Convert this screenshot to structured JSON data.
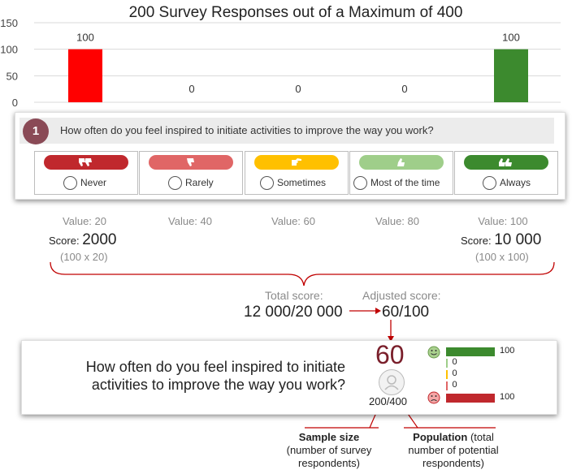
{
  "chart_data": {
    "type": "bar",
    "title": "200 Survey Responses out of a Maximum of 400",
    "categories": [
      "Never",
      "Rarely",
      "Sometimes",
      "Most of the time",
      "Always"
    ],
    "values": [
      100,
      0,
      0,
      0,
      100
    ],
    "colors": [
      "#ff0000",
      "#e06666",
      "#ffc000",
      "#92c47d",
      "#3c8a2e"
    ],
    "yticks": [
      "0",
      "50",
      "100",
      "150"
    ],
    "ylim": [
      0,
      150
    ],
    "grid": true
  },
  "question": {
    "number": "1",
    "text": "How often do you feel inspired to initiate activities to improve the way you work?"
  },
  "options": [
    {
      "label": "Never",
      "color": "#c0282d",
      "icon": "thumbs-down-double-icon"
    },
    {
      "label": "Rarely",
      "color": "#e06666",
      "icon": "thumbs-down-icon"
    },
    {
      "label": "Sometimes",
      "color": "#ffc000",
      "icon": "thumb-sideways-icon"
    },
    {
      "label": "Most of the time",
      "color": "#9fce8a",
      "icon": "thumbs-up-icon"
    },
    {
      "label": "Always",
      "color": "#3c8a2e",
      "icon": "thumbs-up-double-icon"
    }
  ],
  "values": [
    "Value: 20",
    "Value: 40",
    "Value: 60",
    "Value: 80",
    "Value: 100"
  ],
  "score_left": {
    "label": "Score:",
    "value": "2000",
    "calc": "(100 x 20)"
  },
  "score_right": {
    "label": "Score:",
    "value": "10 000",
    "calc": "(100 x 100)"
  },
  "total": {
    "label": "Total score:",
    "value": "12 000/20 000"
  },
  "adjusted": {
    "label": "Adjusted score:",
    "value": "60/100"
  },
  "summary": {
    "question_line1": "How often do you feel inspired to initiate",
    "question_line2": "activities to improve the way you work?",
    "score": "60",
    "sample": "200/400",
    "mini_bars": [
      {
        "value": 100,
        "label": "100",
        "color": "#3c8a2e"
      },
      {
        "value": 0,
        "label": "0",
        "color": "#9fce8a"
      },
      {
        "value": 0,
        "label": "0",
        "color": "#ffc000"
      },
      {
        "value": 0,
        "label": "0",
        "color": "#e06666"
      },
      {
        "value": 100,
        "label": "100",
        "color": "#c0282d"
      }
    ]
  },
  "annotations": {
    "sample_title": "Sample size",
    "sample_line2": "(number of survey",
    "sample_line3": "respondents)",
    "pop_title": "Population",
    "pop_rest1": " (total",
    "pop_line2": "number of potential",
    "pop_line3": "respondents)"
  }
}
